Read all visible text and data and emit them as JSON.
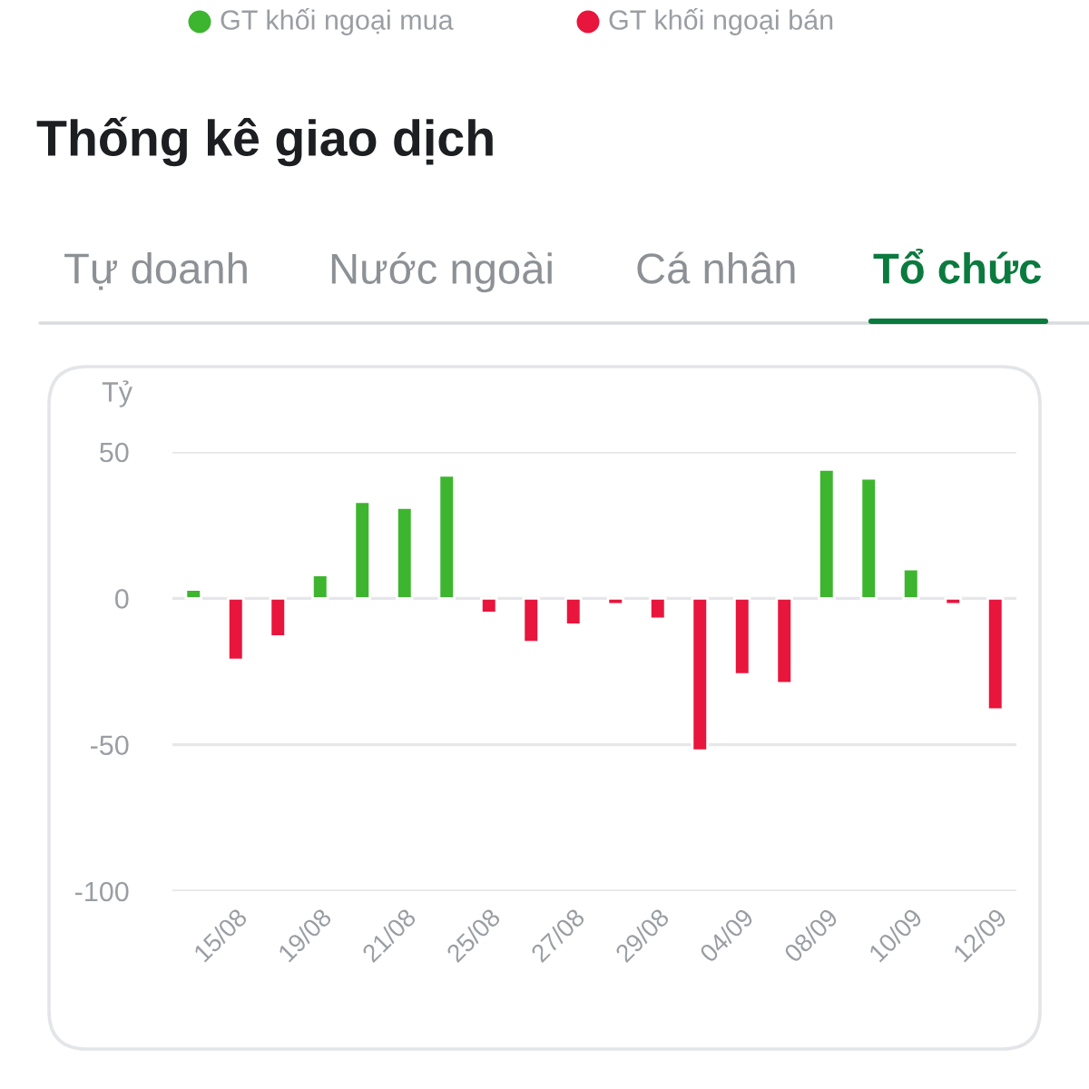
{
  "chart_data": {
    "type": "bar",
    "title": "Thống kê giao dịch",
    "ylabel": "Tỷ",
    "categories": [
      null,
      "15/08",
      null,
      "19/08",
      null,
      "21/08",
      null,
      "25/08",
      null,
      "27/08",
      null,
      "29/08",
      null,
      "04/09",
      null,
      "08/09",
      null,
      "10/09",
      null,
      "12/09"
    ],
    "values": [
      3,
      -21,
      -13,
      8,
      33,
      31,
      42,
      -5,
      -15,
      -9,
      -2,
      -7,
      -52,
      -26,
      -29,
      44,
      41,
      10,
      -2,
      -38
    ],
    "colors": [
      "#3db52f",
      "#e8153c",
      "#e8153c",
      "#3db52f",
      "#3db52f",
      "#3db52f",
      "#3db52f",
      "#e8153c",
      "#e8153c",
      "#e8153c",
      "#e8153c",
      "#e8153c",
      "#e8153c",
      "#e8153c",
      "#e8153c",
      "#3db52f",
      "#3db52f",
      "#3db52f",
      "#e8153c",
      "#e8153c"
    ],
    "ylim": [
      -100,
      50
    ],
    "yticks": [
      50,
      0,
      -50,
      -100
    ],
    "grid": "y",
    "annotations": [
      "GT khối ngoại mua",
      "GT khối ngoại bán",
      "Tự doanh",
      "Nước ngoài",
      "Cá nhân",
      "Tổ chức"
    ]
  }
}
